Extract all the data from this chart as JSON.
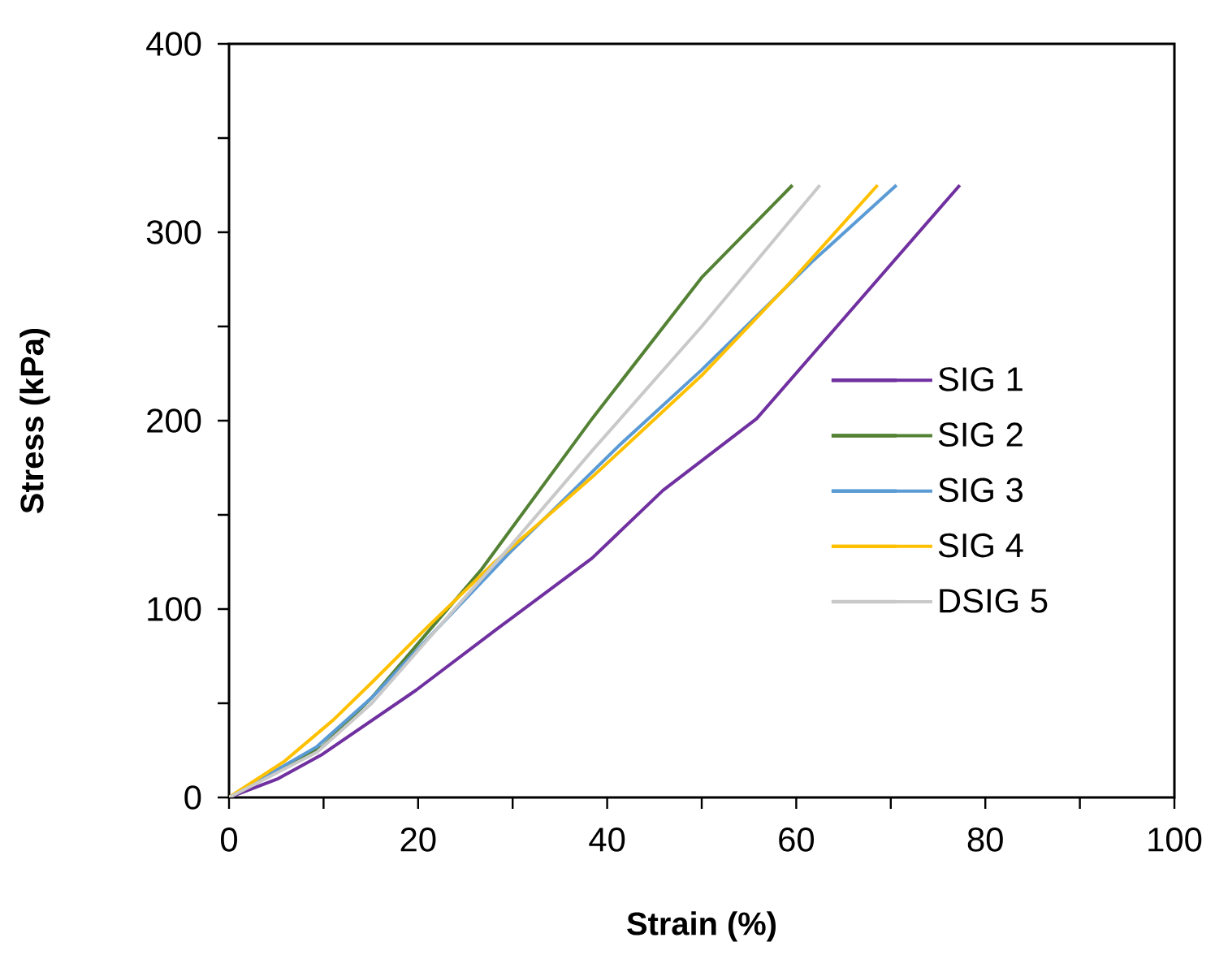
{
  "chart_data": {
    "type": "line",
    "xlabel": "Strain (%)",
    "ylabel": "Stress (kPa)",
    "xlim": [
      0,
      100
    ],
    "ylim": [
      0,
      400
    ],
    "xticks": [
      0,
      {
        "value": 10,
        "label": null
      },
      20,
      {
        "value": 30,
        "label": null
      },
      40,
      {
        "value": 50,
        "label": null
      },
      60,
      {
        "value": 70,
        "label": null
      },
      80,
      {
        "value": 90,
        "label": null
      },
      100
    ],
    "yticks": [
      0,
      {
        "value": 50,
        "label": null
      },
      100,
      {
        "value": 150,
        "label": null
      },
      200,
      {
        "value": 250,
        "label": null
      },
      300,
      {
        "value": 350,
        "label": null
      },
      400
    ],
    "grid": false,
    "legend": "right",
    "marker": "none",
    "line_style": "solid",
    "series": [
      {
        "name": "SIG 1",
        "color": "#7030a0",
        "x": [
          0,
          5.2,
          9.9,
          19.8,
          28.5,
          38.4,
          45.9,
          55.8,
          64.3,
          77.3
        ],
        "values": [
          0,
          10,
          23,
          57,
          90,
          127,
          163,
          201,
          250,
          325
        ]
      },
      {
        "name": "SIG 2",
        "color": "#548235",
        "x": [
          0,
          4.7,
          9.9,
          15.1,
          20.9,
          26.7,
          38.4,
          50,
          59.6
        ],
        "values": [
          0,
          13,
          27,
          53,
          87,
          121,
          201,
          276,
          325
        ]
      },
      {
        "name": "SIG 3",
        "color": "#5b9bd5",
        "x": [
          0,
          9.3,
          15.1,
          22.1,
          29.7,
          41.3,
          50,
          61.6,
          70.6
        ],
        "values": [
          0,
          27,
          53,
          90,
          130,
          187,
          227,
          284,
          325
        ]
      },
      {
        "name": "SIG 4",
        "color": "#ffc000",
        "x": [
          0,
          1.2,
          5.8,
          11,
          15.1,
          20.9,
          27.9,
          38.4,
          50,
          59.3,
          68.6
        ],
        "values": [
          0,
          4,
          19,
          41,
          61,
          90,
          124,
          170,
          224,
          273,
          325
        ]
      },
      {
        "name": "DSIG 5",
        "color": "#c9c9c9",
        "x": [
          0,
          9.3,
          15.1,
          22.1,
          29.7,
          38.4,
          50,
          62.5
        ],
        "values": [
          0,
          24,
          50,
          90,
          133,
          184,
          250,
          325
        ]
      }
    ]
  }
}
